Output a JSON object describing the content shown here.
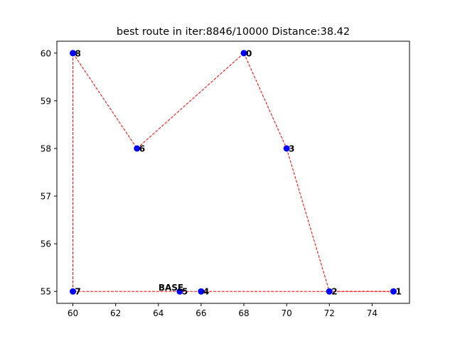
{
  "chart_data": {
    "type": "scatter",
    "title": "best route in iter:8846/10000 Distance:38.42",
    "xlabel": "",
    "ylabel": "",
    "xlim": [
      59.25,
      75.75
    ],
    "ylim": [
      54.75,
      60.25
    ],
    "xticks": [
      60,
      62,
      64,
      66,
      68,
      70,
      72,
      74
    ],
    "yticks": [
      55,
      56,
      57,
      58,
      59,
      60
    ],
    "grid": false,
    "colors": {
      "point": "#0000ff",
      "route": "#ff0000"
    },
    "points": [
      {
        "label": "0",
        "x": 68,
        "y": 60
      },
      {
        "label": "1",
        "x": 75,
        "y": 55
      },
      {
        "label": "2",
        "x": 72,
        "y": 55
      },
      {
        "label": "3",
        "x": 70,
        "y": 58
      },
      {
        "label": "4",
        "x": 66,
        "y": 55
      },
      {
        "label": "5",
        "x": 65,
        "y": 55
      },
      {
        "label": "6",
        "x": 63,
        "y": 58
      },
      {
        "label": "7",
        "x": 60,
        "y": 55
      },
      {
        "label": "8",
        "x": 60,
        "y": 60
      }
    ],
    "route": [
      [
        65,
        55
      ],
      [
        60,
        55
      ],
      [
        60,
        60
      ],
      [
        63,
        58
      ],
      [
        68,
        60
      ],
      [
        70,
        58
      ],
      [
        72,
        55
      ],
      [
        75,
        55
      ],
      [
        66,
        55
      ],
      [
        65,
        55
      ]
    ],
    "annotation": {
      "text": "BASE",
      "x": 65,
      "y": 55
    }
  }
}
